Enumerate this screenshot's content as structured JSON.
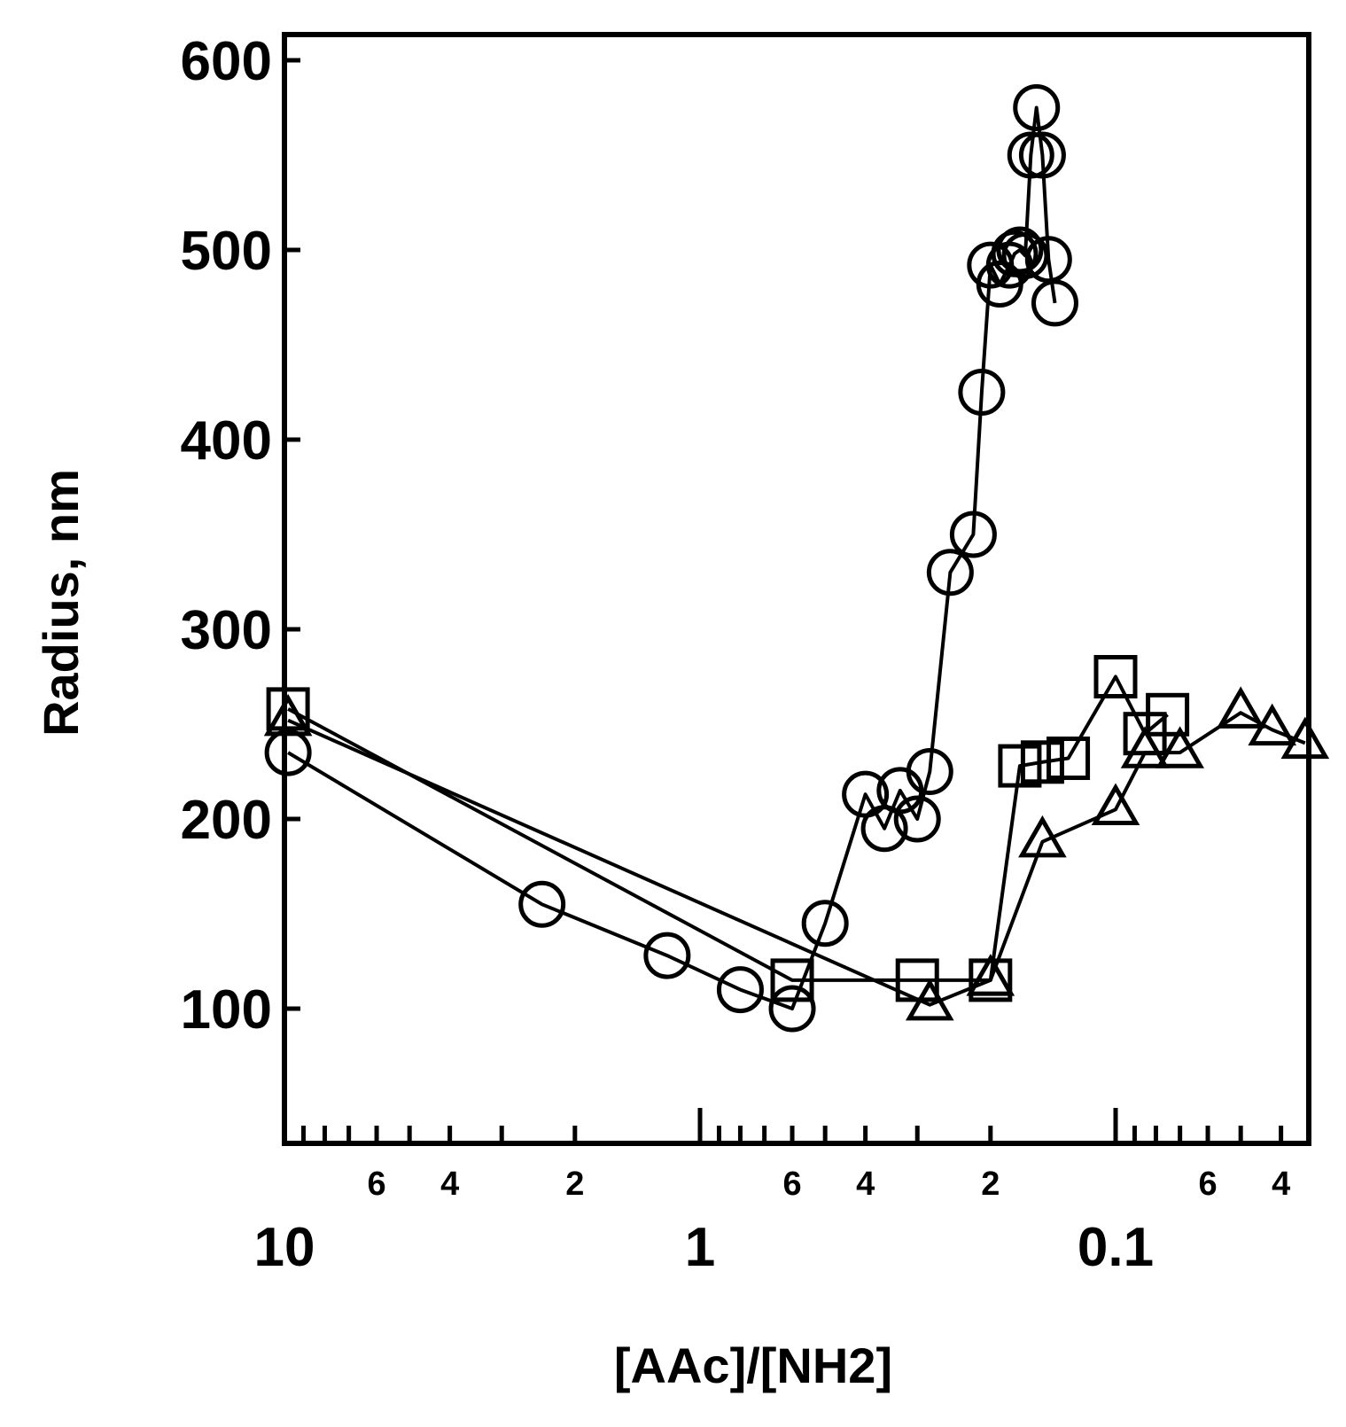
{
  "chart_data": {
    "type": "scatter",
    "title": "",
    "xlabel": "[AAc]/[NH2]",
    "ylabel": "Radius, nm",
    "x_scale": "log",
    "x_reversed": true,
    "xlim": [
      10,
      0.033
    ],
    "ylim": [
      40,
      620
    ],
    "x_major_ticks": [
      10,
      1,
      0.1
    ],
    "x_major_tick_labels": [
      "10",
      "1",
      "0.1"
    ],
    "x_minor_labeled_ticks": [
      6,
      4,
      2,
      0.6,
      0.4,
      0.2,
      0.06,
      0.04
    ],
    "x_minor_tick_labels": [
      "6",
      "4",
      "2",
      "6",
      "4",
      "2",
      "6",
      "4"
    ],
    "y_ticks": [
      100,
      200,
      300,
      400,
      500,
      600
    ],
    "y_tick_labels": [
      "100",
      "200",
      "300",
      "400",
      "500",
      "600"
    ],
    "grid": false,
    "legend": "none",
    "series": [
      {
        "marker": "circle",
        "x": [
          9.8,
          2.4,
          1.2,
          0.8,
          0.6,
          0.5,
          0.4,
          0.36,
          0.33,
          0.3,
          0.28,
          0.25,
          0.22,
          0.21,
          0.2,
          0.19,
          0.18,
          0.175,
          0.17,
          0.165,
          0.16,
          0.155,
          0.15,
          0.145,
          0.14
        ],
        "y": [
          235,
          155,
          128,
          110,
          100,
          145,
          213,
          195,
          215,
          200,
          225,
          330,
          350,
          425,
          492,
          482,
          492,
          498,
          500,
          497,
          550,
          575,
          550,
          495,
          472
        ]
      },
      {
        "marker": "square",
        "x": [
          9.8,
          0.6,
          0.3,
          0.2,
          0.17,
          0.15,
          0.13,
          0.1,
          0.085,
          0.075
        ],
        "y": [
          258,
          115,
          115,
          115,
          228,
          230,
          232,
          275,
          245,
          255
        ]
      },
      {
        "marker": "triangle",
        "x": [
          9.8,
          0.28,
          0.2,
          0.15,
          0.1,
          0.085,
          0.07,
          0.05,
          0.042,
          0.035
        ],
        "y": [
          252,
          102,
          115,
          188,
          205,
          235,
          235,
          256,
          247,
          240
        ]
      }
    ]
  }
}
